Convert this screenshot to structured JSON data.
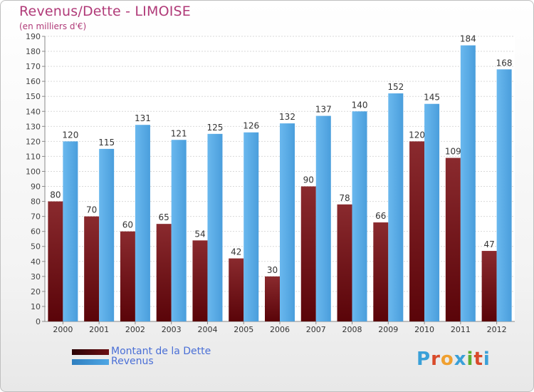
{
  "header": {
    "title": "Revenus/Dette - LIMOISE",
    "subtitle": "(en milliers d'€)"
  },
  "legend": {
    "items": [
      {
        "label": "Montant de la Dette",
        "color": "#6b0f13"
      },
      {
        "label": "Revenus",
        "color": "#4ea6e4"
      }
    ]
  },
  "logo": {
    "letters": [
      "P",
      "r",
      "o",
      "x",
      "i",
      "t",
      "i"
    ],
    "colors": [
      "#3aa0d8",
      "#d84a2a",
      "#f0a030",
      "#3aa0d8",
      "#5bb030",
      "#d84a2a",
      "#3aa0d8"
    ]
  },
  "chart_data": {
    "type": "bar",
    "categories": [
      "2000",
      "2001",
      "2002",
      "2003",
      "2004",
      "2005",
      "2006",
      "2007",
      "2008",
      "2009",
      "2010",
      "2011",
      "2012"
    ],
    "series": [
      {
        "name": "Montant de la Dette",
        "values": [
          80,
          70,
          60,
          65,
          54,
          42,
          30,
          90,
          78,
          66,
          120,
          109,
          47
        ],
        "color": "#6b0f13"
      },
      {
        "name": "Revenus",
        "values": [
          120,
          115,
          131,
          121,
          125,
          126,
          132,
          137,
          140,
          152,
          145,
          184,
          168
        ],
        "color": "#4ea6e4"
      }
    ],
    "ylim": [
      0,
      190
    ],
    "ytick_step": 10,
    "grid": true
  }
}
